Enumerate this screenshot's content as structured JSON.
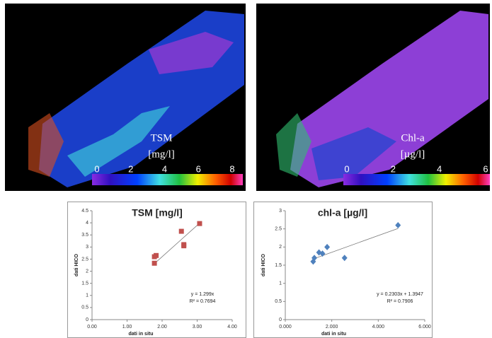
{
  "maps": [
    {
      "label": "TSM",
      "unit": "[mg/l]",
      "range": [
        0,
        8
      ],
      "ticks": [
        0,
        2,
        4,
        6,
        8
      ]
    },
    {
      "label": "Chl-a",
      "unit": "[µg/l]",
      "range": [
        0,
        6
      ],
      "ticks": [
        0,
        2,
        4,
        6
      ]
    }
  ],
  "chart_data": [
    {
      "type": "scatter",
      "title": "TSM [mg/l]",
      "x_label": "dati in situ",
      "y_label": "dati HICO",
      "color": "#c0504d",
      "marker": "square",
      "x": [
        1.78,
        1.83,
        1.78,
        2.55,
        2.62,
        2.62,
        3.07
      ],
      "values": [
        2.6,
        2.65,
        2.33,
        3.65,
        3.1,
        3.05,
        3.97
      ],
      "xlim": [
        0,
        4
      ],
      "xticks": [
        {
          "value": 0,
          "label": "0.00"
        },
        {
          "value": 1,
          "label": "1.00"
        },
        {
          "value": 2,
          "label": "2.00"
        },
        {
          "value": 3,
          "label": "3.00"
        },
        {
          "value": 4,
          "label": "4.00"
        }
      ],
      "ylim": [
        0,
        4.5
      ],
      "yticks": [
        0,
        0.5,
        1,
        1.5,
        2,
        2.5,
        3,
        3.5,
        4,
        4.5
      ],
      "trendline": {
        "slope": 1.299,
        "intercept": 0,
        "x": [
          1.75,
          3.07
        ]
      },
      "annotations": [
        "y = 1.299x",
        "R² = 0.7694"
      ]
    },
    {
      "type": "scatter",
      "title": "chl-a [µg/l]",
      "x_label": "dati in situ",
      "y_label": "dati HICO",
      "color": "#4f81bd",
      "marker": "diamond",
      "x": [
        1.2,
        1.25,
        1.45,
        1.6,
        1.8,
        2.55,
        4.85
      ],
      "values": [
        1.6,
        1.7,
        1.85,
        1.82,
        2.0,
        1.7,
        2.6
      ],
      "xlim": [
        0,
        6
      ],
      "xticks": [
        {
          "value": 0,
          "label": "0.000"
        },
        {
          "value": 2,
          "label": "2.000"
        },
        {
          "value": 4,
          "label": "4.000"
        },
        {
          "value": 6,
          "label": "6.000"
        }
      ],
      "ylim": [
        0,
        3
      ],
      "yticks": [
        0,
        0.5,
        1,
        1.5,
        2,
        2.5,
        3
      ],
      "trendline": {
        "slope": 0.2303,
        "intercept": 1.3947,
        "x": [
          1.2,
          4.85
        ]
      },
      "annotations": [
        "y = 0.2303x + 1.3947",
        "R² = 0.7906"
      ]
    }
  ]
}
